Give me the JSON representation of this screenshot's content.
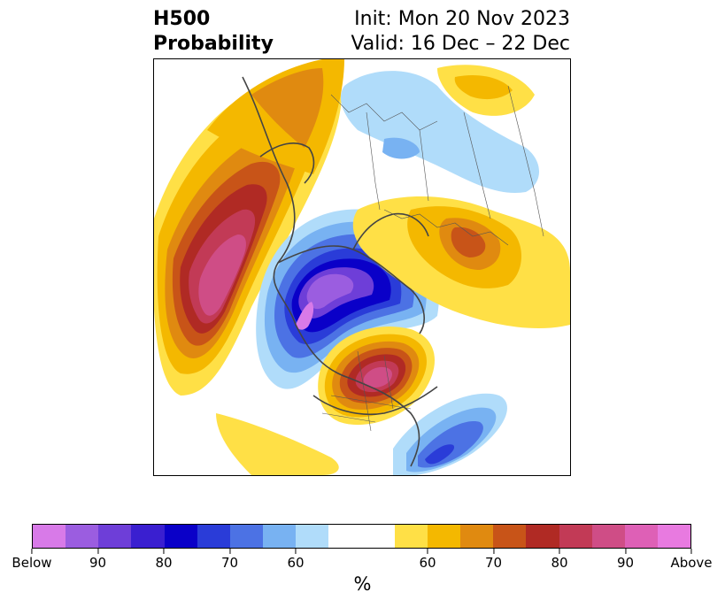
{
  "title": {
    "left_line1": "H500",
    "left_line2": "Probability",
    "right_line1": "Init: Mon 20 Nov 2023",
    "right_line2": "Valid: 16 Dec – 22 Dec"
  },
  "colorbar": {
    "unit": "%",
    "colors": [
      "#d87ae8",
      "#9b5de0",
      "#6e3ed8",
      "#3a1fd0",
      "#0a00c8",
      "#2a3cd8",
      "#4c72e4",
      "#78b2f2",
      "#b0dcfa",
      "#ffffff",
      "#ffffff",
      "#ffe046",
      "#f4b800",
      "#e08a10",
      "#c85418",
      "#b02a24",
      "#c23a56",
      "#cf4d86",
      "#de60b6",
      "#e87ae0"
    ],
    "tick_labels": [
      "Below",
      "90",
      "80",
      "70",
      "60",
      "60",
      "70",
      "80",
      "90",
      "Above"
    ]
  },
  "map": {
    "projection": "north-polar",
    "anomalies": [
      {
        "region": "northeast-pacific",
        "sign": "above",
        "peak": "90"
      },
      {
        "region": "western-north-america",
        "sign": "below",
        "peak": "Below"
      },
      {
        "region": "eastern-north-america",
        "sign": "above",
        "peak": "90"
      },
      {
        "region": "north-atlantic",
        "sign": "below",
        "peak": "80"
      },
      {
        "region": "europe-russia",
        "sign": "above",
        "peak": "70"
      },
      {
        "region": "arctic-siberia",
        "sign": "below",
        "peak": "60"
      }
    ]
  }
}
